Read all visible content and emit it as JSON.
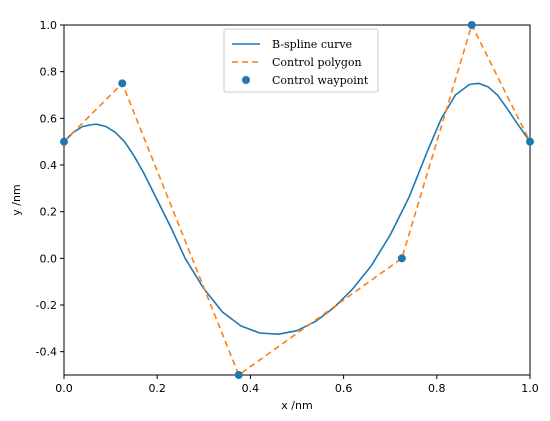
{
  "chart_data": {
    "type": "line",
    "title": "",
    "xlabel": "x /nm",
    "ylabel": "y /nm",
    "xlim": [
      0,
      1
    ],
    "ylim": [
      -0.5,
      1.0
    ],
    "xticks": [
      "0.0",
      "0.2",
      "0.4",
      "0.6",
      "0.8",
      "1.0"
    ],
    "yticks": [
      "1.0",
      "0.8",
      "0.6",
      "0.4",
      "0.2",
      "0.0",
      "-0.2",
      "-0.4"
    ],
    "xtick_values": [
      0,
      0.2,
      0.4,
      0.6,
      0.8,
      1.0
    ],
    "ytick_values": [
      1.0,
      0.8,
      0.6,
      0.4,
      0.2,
      0.0,
      -0.2,
      -0.4
    ],
    "grid": false,
    "legend_position": "top-center",
    "series": [
      {
        "name": "B-spline curve",
        "style": "solid",
        "color": "#1f77b4",
        "x": [
          0.0,
          0.02,
          0.04,
          0.06,
          0.07,
          0.09,
          0.11,
          0.13,
          0.15,
          0.17,
          0.2,
          0.23,
          0.26,
          0.3,
          0.34,
          0.38,
          0.42,
          0.46,
          0.5,
          0.54,
          0.58,
          0.62,
          0.66,
          0.7,
          0.74,
          0.78,
          0.81,
          0.84,
          0.87,
          0.89,
          0.91,
          0.93,
          0.95,
          0.97,
          1.0
        ],
        "y": [
          0.5,
          0.54,
          0.565,
          0.573,
          0.575,
          0.565,
          0.54,
          0.5,
          0.44,
          0.37,
          0.25,
          0.13,
          0.0,
          -0.13,
          -0.23,
          -0.29,
          -0.32,
          -0.325,
          -0.31,
          -0.27,
          -0.21,
          -0.13,
          -0.03,
          0.1,
          0.26,
          0.46,
          0.6,
          0.7,
          0.745,
          0.75,
          0.735,
          0.7,
          0.645,
          0.585,
          0.5
        ]
      },
      {
        "name": "Control polygon",
        "style": "dashed",
        "color": "#ff7f0e",
        "x": [
          0.0,
          0.125,
          0.375,
          0.725,
          0.875,
          1.0
        ],
        "y": [
          0.5,
          0.75,
          -0.5,
          0.0,
          1.0,
          0.5
        ]
      },
      {
        "name": "Control waypoint",
        "style": "markers",
        "color": "#1f77b4",
        "x": [
          0.0,
          0.125,
          0.375,
          0.725,
          0.875,
          1.0
        ],
        "y": [
          0.5,
          0.75,
          -0.5,
          0.0,
          1.0,
          0.5
        ]
      }
    ]
  }
}
